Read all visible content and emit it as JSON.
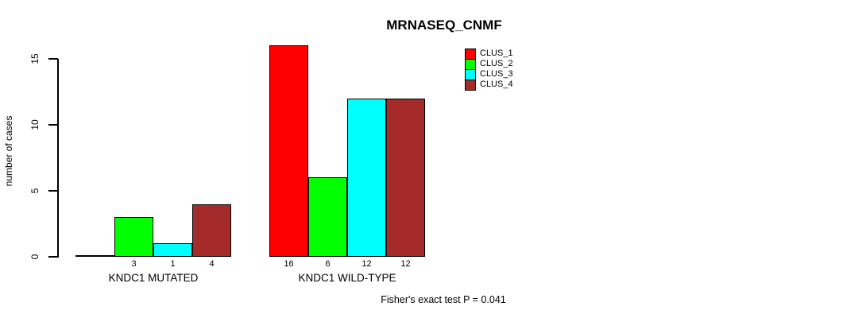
{
  "title": "MRNASEQ_CNMF",
  "y_axis": {
    "label": "number of cases",
    "tick_labels": [
      "0",
      "5",
      "10",
      "15"
    ],
    "tick_values": [
      0,
      5,
      10,
      15
    ]
  },
  "legend": {
    "items": [
      {
        "label": "CLUS_1",
        "color": "#ff0000"
      },
      {
        "label": "CLUS_2",
        "color": "#00ff00"
      },
      {
        "label": "CLUS_3",
        "color": "#00ffff"
      },
      {
        "label": "CLUS_4",
        "color": "#a52a2a"
      }
    ]
  },
  "groups": [
    {
      "label": "KNDC1 MUTATED",
      "bars": [
        {
          "cluster": "CLUS_1",
          "value": 0,
          "color": "#ff0000",
          "value_label": ""
        },
        {
          "cluster": "CLUS_2",
          "value": 3,
          "color": "#00ff00",
          "value_label": "3"
        },
        {
          "cluster": "CLUS_3",
          "value": 1,
          "color": "#00ffff",
          "value_label": "1"
        },
        {
          "cluster": "CLUS_4",
          "value": 4,
          "color": "#a52a2a",
          "value_label": "4"
        }
      ]
    },
    {
      "label": "KNDC1 WILD-TYPE",
      "bars": [
        {
          "cluster": "CLUS_1",
          "value": 16,
          "color": "#ff0000",
          "value_label": "16"
        },
        {
          "cluster": "CLUS_2",
          "value": 6,
          "color": "#00ff00",
          "value_label": "6"
        },
        {
          "cluster": "CLUS_3",
          "value": 12,
          "color": "#00ffff",
          "value_label": "12"
        },
        {
          "cluster": "CLUS_4",
          "value": 12,
          "color": "#a52a2a",
          "value_label": "12"
        }
      ]
    }
  ],
  "footnote": "Fisher's exact test P = 0.041",
  "chart_data": {
    "type": "bar",
    "title": "MRNASEQ_CNMF",
    "xlabel": "",
    "ylabel": "number of cases",
    "categories": [
      "KNDC1 MUTATED",
      "KNDC1 WILD-TYPE"
    ],
    "series": [
      {
        "name": "CLUS_1",
        "color": "#ff0000",
        "values": [
          0,
          16
        ]
      },
      {
        "name": "CLUS_2",
        "color": "#00ff00",
        "values": [
          3,
          6
        ]
      },
      {
        "name": "CLUS_3",
        "color": "#00ffff",
        "values": [
          1,
          12
        ]
      },
      {
        "name": "CLUS_4",
        "color": "#a52a2a",
        "values": [
          4,
          12
        ]
      }
    ],
    "bar_value_labels": [
      [
        "",
        "3",
        "1",
        "4"
      ],
      [
        "16",
        "6",
        "12",
        "12"
      ]
    ],
    "ylim": [
      0,
      16
    ],
    "yticks": [
      0,
      5,
      10,
      15
    ],
    "grid": false,
    "legend_position": "top-right",
    "annotation": "Fisher's exact test P = 0.041"
  }
}
